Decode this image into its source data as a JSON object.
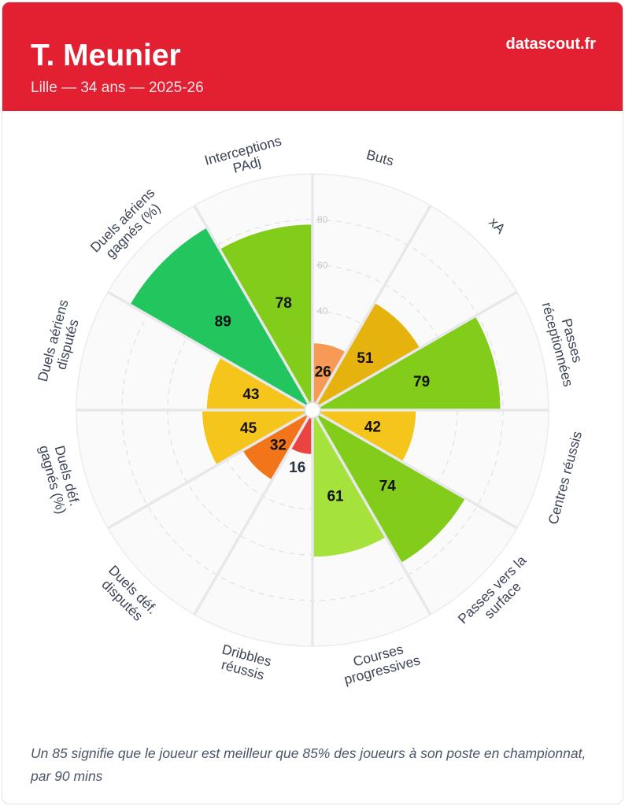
{
  "header": {
    "name": "T. Meunier",
    "meta": "Lille — 34 ans — 2025-26",
    "brand": "datascout.fr"
  },
  "footnote": "Un 85 signifie que le joueur est meilleur que 85% des joueurs à son poste en championnat, par 90 mins",
  "chart_data": {
    "type": "polar-bar",
    "title": "",
    "rmax": 100,
    "ticks": [
      40,
      60,
      80
    ],
    "categories": [
      [
        "Buts"
      ],
      [
        "xA"
      ],
      [
        "Passes",
        "réceptionnées"
      ],
      [
        "Centres réussis"
      ],
      [
        "Passes vers la",
        "surface"
      ],
      [
        "Courses",
        "progressives"
      ],
      [
        "Dribbles",
        "réussis"
      ],
      [
        "Duels déf.",
        "disputés"
      ],
      [
        "Duels déf.",
        "gagnés (%)"
      ],
      [
        "Duels aériens",
        "disputés"
      ],
      [
        "Duels aériens",
        "gagnés (%)"
      ],
      [
        "Interceptions",
        "PAdj"
      ]
    ],
    "values": [
      26,
      51,
      79,
      42,
      74,
      61,
      16,
      32,
      45,
      43,
      89,
      78
    ],
    "value_labels": [
      "26",
      "51",
      "79",
      "42",
      "74",
      "61",
      "16",
      "32",
      "45",
      "43",
      "89",
      "78"
    ],
    "colors": [
      "#f79a55",
      "#e6b30e",
      "#82cc1a",
      "#f5c51c",
      "#82cc1a",
      "#a6e23c",
      "#ea4340",
      "#f37519",
      "#f5c51c",
      "#f5c51c",
      "#22c55e",
      "#82cc1a"
    ],
    "tick_labels": [
      "40",
      "60",
      "80"
    ]
  }
}
